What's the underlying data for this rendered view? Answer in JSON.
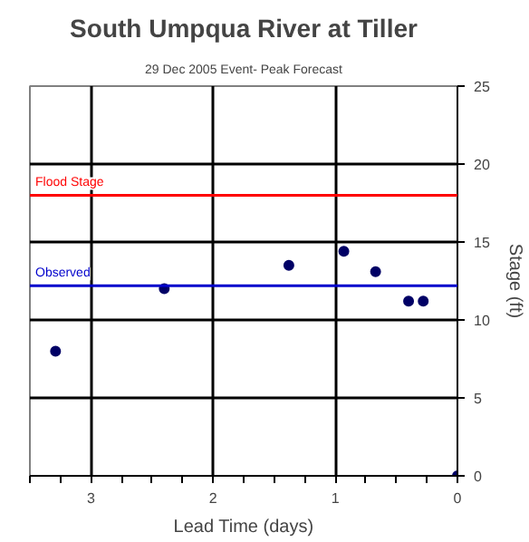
{
  "chart_data": {
    "type": "scatter",
    "title": "South Umpqua River at Tiller",
    "subtitle": "29 Dec 2005 Event- Peak Forecast",
    "xlabel": "Lead Time (days)",
    "ylabel": "Stage (ft)",
    "x": [
      3.29,
      2.4,
      1.38,
      0.93,
      0.67,
      0.4,
      0.28,
      0
    ],
    "series": [
      {
        "color": "#000066",
        "values": [
          8.0,
          12.0,
          13.5,
          14.4,
          13.1,
          11.2,
          11.2,
          0
        ]
      }
    ],
    "marker": "circle",
    "xlim": [
      3.5,
      0
    ],
    "ylim": [
      0,
      25
    ],
    "xticks": [
      0,
      {
        "value": 0.25,
        "label": null
      },
      {
        "value": 0.5,
        "label": null
      },
      {
        "value": 0.75,
        "label": null
      },
      1,
      {
        "value": 1.25,
        "label": null
      },
      {
        "value": 1.5,
        "label": null
      },
      {
        "value": 1.75,
        "label": null
      },
      2,
      {
        "value": 2.25,
        "label": null
      },
      {
        "value": 2.5,
        "label": null
      },
      {
        "value": 2.75,
        "label": null
      },
      3,
      {
        "value": 3.25,
        "label": null
      },
      {
        "value": 3.5,
        "label": null
      }
    ],
    "yticks": [
      0,
      5,
      10,
      15,
      20,
      25
    ],
    "grid": true,
    "ref_lines": [
      {
        "axis": "y",
        "value": 18,
        "label": "Flood Stage",
        "color": "#ff0000"
      },
      {
        "axis": "y",
        "value": 12.2,
        "label": "Observed",
        "color": "#0000cc"
      }
    ]
  }
}
